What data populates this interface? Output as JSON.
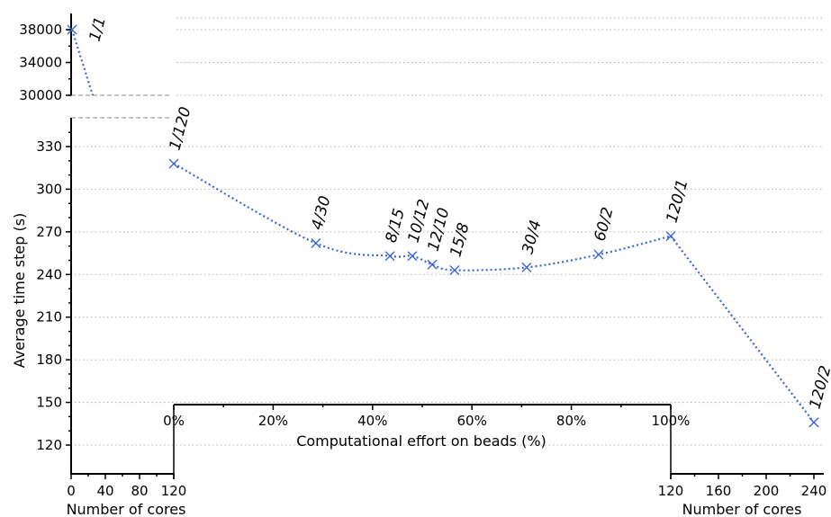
{
  "chart_data": {
    "type": "line",
    "ylabel": "Average time step (s)",
    "xlabel_effort": "Computational effort on beads (%)",
    "xlabel_cores": "Number of cores",
    "y_lower_ticks": [
      120,
      150,
      180,
      210,
      240,
      270,
      300,
      330
    ],
    "y_upper_ticks": [
      30000,
      34000,
      38000
    ],
    "x_left_cores_ticks": [
      0,
      40,
      80,
      120
    ],
    "x_right_cores_ticks": [
      120,
      160,
      200,
      240
    ],
    "x_effort_ticks": [
      "0%",
      "20%",
      "40%",
      "60%",
      "80%",
      "100%"
    ],
    "ylim_lower": [
      105,
      345
    ],
    "ylim_upper": [
      30000,
      39800
    ],
    "grid": true,
    "series_color": "#3a66d8",
    "points": [
      {
        "label": "1/1",
        "axis": "cores_left",
        "x": 1,
        "y": 38000
      },
      {
        "label": "1/120",
        "axis": "effort",
        "x": 0,
        "y": 318
      },
      {
        "label": "4/30",
        "axis": "effort",
        "x": 28.6,
        "y": 262
      },
      {
        "label": "8/15",
        "axis": "effort",
        "x": 43.5,
        "y": 253
      },
      {
        "label": "10/12",
        "axis": "effort",
        "x": 48.0,
        "y": 253
      },
      {
        "label": "12/10",
        "axis": "effort",
        "x": 52.0,
        "y": 247
      },
      {
        "label": "15/8",
        "axis": "effort",
        "x": 56.5,
        "y": 243
      },
      {
        "label": "30/4",
        "axis": "effort",
        "x": 71.0,
        "y": 245
      },
      {
        "label": "60/2",
        "axis": "effort",
        "x": 85.5,
        "y": 254
      },
      {
        "label": "120/1",
        "axis": "effort",
        "x": 100,
        "y": 267
      },
      {
        "label": "120/2",
        "axis": "cores_right",
        "x": 240,
        "y": 136
      }
    ]
  }
}
